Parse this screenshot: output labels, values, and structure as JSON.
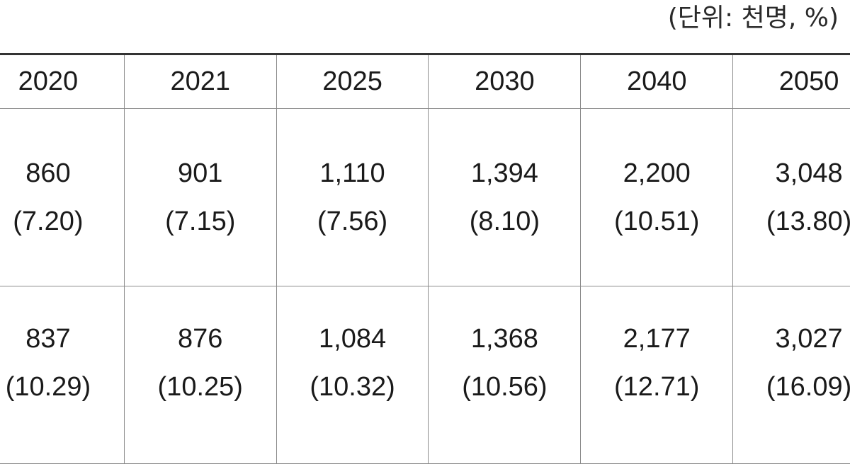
{
  "unit_note": "(단위: 천명, %)",
  "table": {
    "years": [
      "2020",
      "2021",
      "2025",
      "2030",
      "2040",
      "2050"
    ],
    "rows": [
      {
        "values": [
          "860",
          "901",
          "1,110",
          "1,394",
          "2,200",
          "3,048"
        ],
        "percents": [
          "(7.20)",
          "(7.15)",
          "(7.56)",
          "(8.10)",
          "(10.51)",
          "(13.80)"
        ]
      },
      {
        "values": [
          "837",
          "876",
          "1,084",
          "1,368",
          "2,177",
          "3,027"
        ],
        "percents": [
          "(10.29)",
          "(10.25)",
          "(10.32)",
          "(10.56)",
          "(12.71)",
          "(16.09)"
        ]
      }
    ]
  }
}
